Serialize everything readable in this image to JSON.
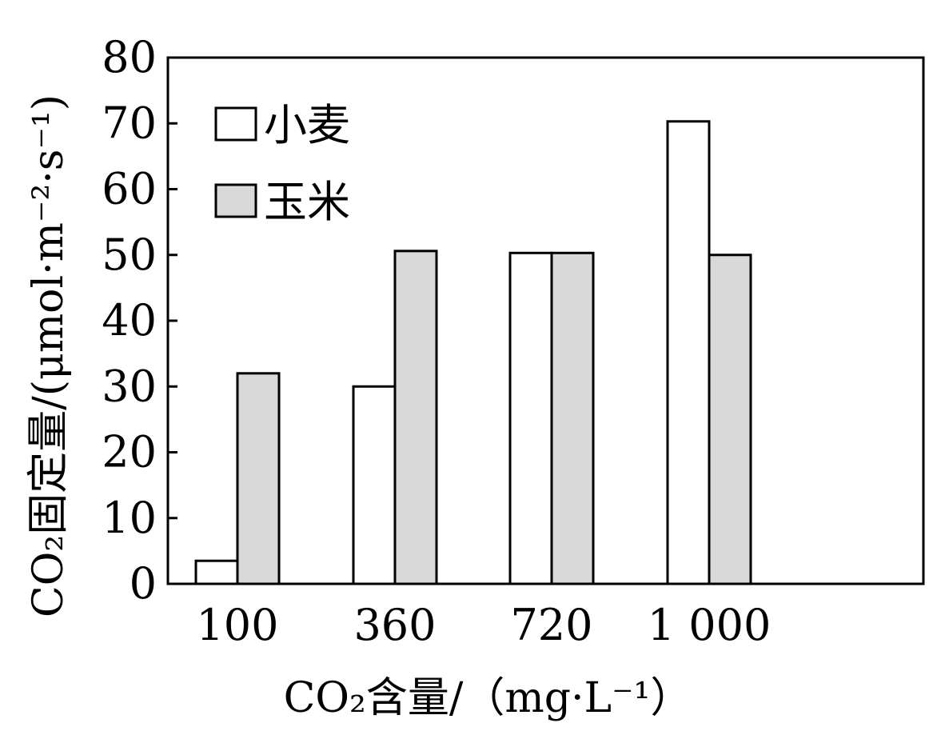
{
  "chart_data": {
    "type": "bar",
    "categories": [
      "100",
      "360",
      "720",
      "1 000"
    ],
    "series": [
      {
        "name": "小麦",
        "values": [
          3.5,
          30,
          50.3,
          70.3
        ],
        "color": "#ffffff"
      },
      {
        "name": "玉米",
        "values": [
          32,
          50.6,
          50.3,
          50
        ],
        "color": "#d9d9d9"
      }
    ],
    "xlabel": "CO₂含量/（mg·L⁻¹）",
    "ylabel": "CO₂固定量/(μmol·m⁻²·s⁻¹)",
    "ylim": [
      0,
      80
    ],
    "yticks": [
      "0",
      "10",
      "20",
      "30",
      "40",
      "50",
      "60",
      "70",
      "80"
    ],
    "grid": false,
    "legend": "top-left"
  }
}
